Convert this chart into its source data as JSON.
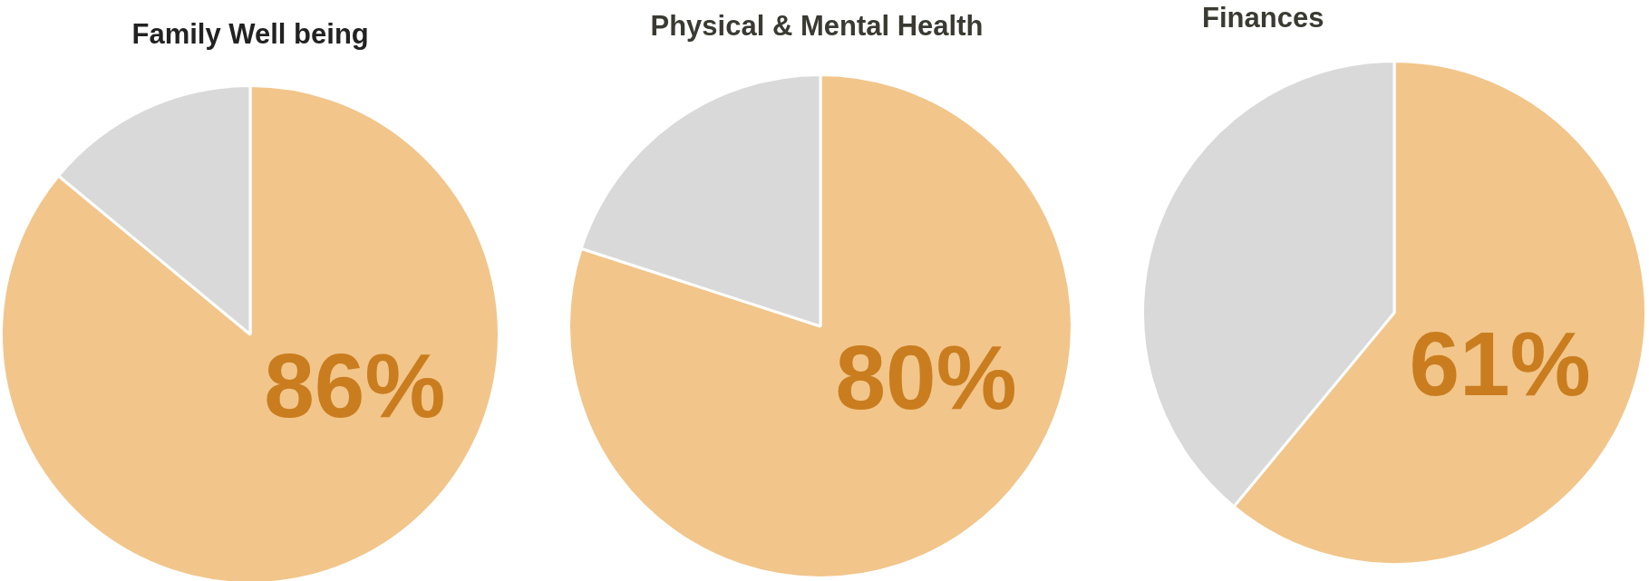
{
  "chart_data": [
    {
      "type": "pie",
      "title": "Family Well being",
      "categories": [
        null,
        null
      ],
      "values": [
        86,
        14
      ],
      "colors": [
        "#f2c58a",
        "#d9d9d9"
      ],
      "value_labels": [
        "86%",
        null
      ]
    },
    {
      "type": "pie",
      "title": "Physical & Mental Health",
      "categories": [
        null,
        null
      ],
      "values": [
        80,
        20
      ],
      "colors": [
        "#f2c58a",
        "#d9d9d9"
      ],
      "value_labels": [
        "80%",
        null
      ]
    },
    {
      "type": "pie",
      "title": "Finances",
      "categories": [
        null,
        null
      ],
      "values": [
        61,
        39
      ],
      "colors": [
        "#f2c58a",
        "#d9d9d9"
      ],
      "value_labels": [
        "61%",
        null
      ]
    }
  ]
}
